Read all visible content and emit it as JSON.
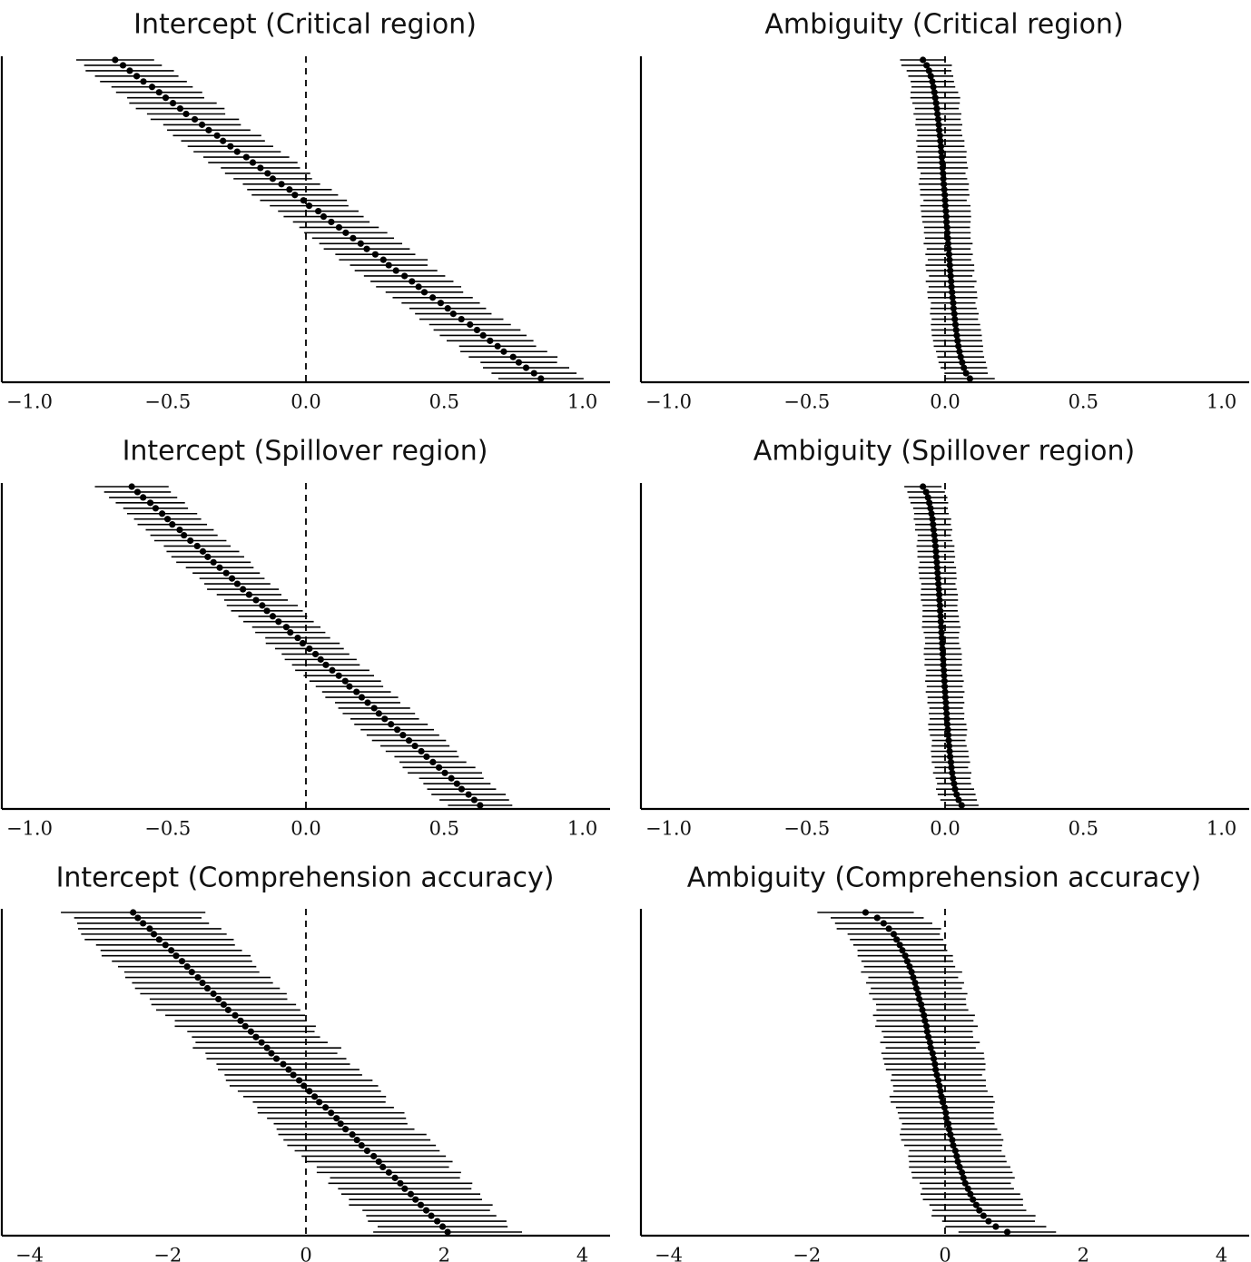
{
  "figure": {
    "background": "#ffffff",
    "ink_color": "#000000"
  },
  "chart_data": [
    {
      "type": "forest",
      "title": "Intercept (Critical region)",
      "xlim": [
        -1.1,
        1.1
      ],
      "xticks": [
        -1.0,
        -0.5,
        0.0,
        0.5,
        1.0
      ],
      "xtick_labels": [
        "−1.0",
        "−0.5",
        "0.0",
        "0.5",
        "1.0"
      ],
      "reference_line": 0,
      "n_points": 60,
      "estimate_range": [
        -0.69,
        0.85
      ],
      "ci_halfwidth": 0.15,
      "profile": "s-curve",
      "sort": "ascending"
    },
    {
      "type": "forest",
      "title": "Ambiguity (Critical region)",
      "xlim": [
        -1.1,
        1.1
      ],
      "xticks": [
        -1.0,
        -0.5,
        0.0,
        0.5,
        1.0
      ],
      "xtick_labels": [
        "−1.0",
        "−0.5",
        "0.0",
        "0.5",
        "1.0"
      ],
      "reference_line": 0,
      "n_points": 60,
      "estimate_range": [
        -0.08,
        0.09
      ],
      "ci_halfwidth": 0.085,
      "profile": "flat-tails",
      "sort": "ascending"
    },
    {
      "type": "forest",
      "title": "Intercept (Spillover region)",
      "xlim": [
        -1.1,
        1.1
      ],
      "xticks": [
        -1.0,
        -0.5,
        0.0,
        0.5,
        1.0
      ],
      "xtick_labels": [
        "−1.0",
        "−0.5",
        "0.0",
        "0.5",
        "1.0"
      ],
      "reference_line": 0,
      "n_points": 60,
      "estimate_range": [
        -0.63,
        0.63
      ],
      "ci_halfwidth": 0.125,
      "profile": "s-curve",
      "sort": "ascending"
    },
    {
      "type": "forest",
      "title": "Ambiguity (Spillover region)",
      "xlim": [
        -1.1,
        1.1
      ],
      "xticks": [
        -1.0,
        -0.5,
        0.0,
        0.5,
        1.0
      ],
      "xtick_labels": [
        "−1.0",
        "−0.5",
        "0.0",
        "0.5",
        "1.0"
      ],
      "reference_line": 0,
      "n_points": 60,
      "estimate_range": [
        -0.08,
        0.06
      ],
      "ci_halfwidth": 0.065,
      "profile": "flat-tails",
      "sort": "ascending"
    },
    {
      "type": "forest",
      "title": "Intercept (Comprehension accuracy)",
      "xlim": [
        -4.4,
        4.4
      ],
      "xticks": [
        -4,
        -2,
        0,
        2,
        4
      ],
      "xtick_labels": [
        "−4",
        "−2",
        "0",
        "2",
        "4"
      ],
      "reference_line": 0,
      "n_points": 60,
      "estimate_range": [
        -2.5,
        2.05
      ],
      "ci_halfwidth": 1.0,
      "profile": "s-curve",
      "sort": "ascending"
    },
    {
      "type": "forest",
      "title": "Ambiguity (Comprehension accuracy)",
      "xlim": [
        -4.4,
        4.4
      ],
      "xticks": [
        -4,
        -2,
        0,
        2,
        4
      ],
      "xtick_labels": [
        "−4",
        "−2",
        "0",
        "2",
        "4"
      ],
      "reference_line": 0,
      "n_points": 60,
      "estimate_range": [
        -1.15,
        0.9
      ],
      "ci_halfwidth": 0.7,
      "profile": "flat-tails",
      "sort": "ascending"
    }
  ]
}
